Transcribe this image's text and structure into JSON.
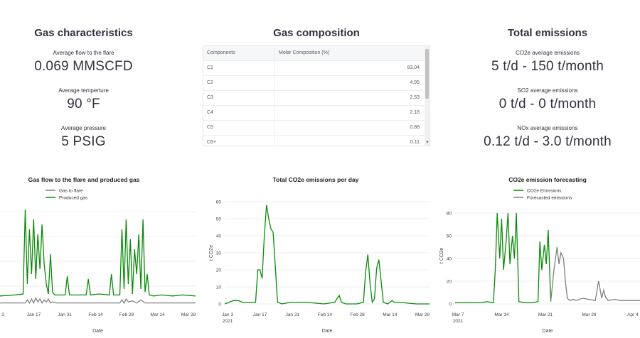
{
  "gas_characteristics": {
    "title": "Gas characteristics",
    "metrics": [
      {
        "label": "Average flow to the flare",
        "value": "0.069 MMSCFD"
      },
      {
        "label": "Average temperture",
        "value": "90 °F"
      },
      {
        "label": "Average pressure",
        "value": "5 PSIG"
      }
    ]
  },
  "gas_composition": {
    "title": "Gas composition",
    "headers": [
      "Components",
      "Molar Composition (%)"
    ],
    "rows": [
      {
        "component": "C1",
        "value": "83.04"
      },
      {
        "component": "C2",
        "value": "4.95"
      },
      {
        "component": "C3",
        "value": "2.53"
      },
      {
        "component": "C4",
        "value": "2.18"
      },
      {
        "component": "C5",
        "value": "0.88"
      },
      {
        "component": "C6+",
        "value": "0.11"
      }
    ]
  },
  "total_emissions": {
    "title": "Total emissions",
    "metrics": [
      {
        "label": "CO2e average emissions",
        "value": "5 t/d - 150 t/month"
      },
      {
        "label": "SO2 average emissions",
        "value": "0 t/d - 0 t/month"
      },
      {
        "label": "NOx average emissions",
        "value": "0.12 t/d - 3.0 t/month"
      }
    ]
  },
  "colors": {
    "green": "#0b8a0b",
    "gray": "#808080",
    "grid": "#ececec"
  },
  "chart_data": [
    {
      "type": "line",
      "title": "Gas flow to the flare and produced gas",
      "xlabel": "Date",
      "ylabel": "",
      "x_ticks": [
        "3",
        "Jan 17",
        "Jan 31",
        "Feb 14",
        "Feb 28",
        "Mar 14",
        "Mar 28"
      ],
      "x_range": [
        3,
        96
      ],
      "y_range": [
        0,
        1
      ],
      "legend_placement": "top-left",
      "series": [
        {
          "name": "Gas to flare",
          "color": "#808080",
          "x": [
            3,
            15,
            16,
            17,
            18,
            19,
            20,
            21,
            22,
            23,
            24,
            25,
            26,
            27,
            28,
            30,
            40,
            50,
            60,
            61,
            62,
            63,
            64,
            66,
            68,
            70,
            72,
            80,
            90,
            96
          ],
          "y": [
            0.01,
            0.01,
            0.04,
            0.01,
            0.05,
            0.01,
            0.06,
            0.02,
            0.05,
            0.01,
            0.04,
            0.02,
            0.05,
            0.01,
            0.02,
            0.01,
            0.01,
            0.01,
            0.01,
            0.04,
            0.01,
            0.05,
            0.02,
            0.03,
            0.01,
            0.04,
            0.01,
            0.01,
            0.01,
            0.01
          ]
        },
        {
          "name": "Produced gas",
          "color": "#0b8a0b",
          "x": [
            3,
            10,
            14,
            15,
            16,
            17,
            18,
            19,
            20,
            21,
            22,
            23,
            24,
            25,
            26,
            27,
            28,
            29,
            30,
            34,
            35,
            36,
            40,
            44,
            45,
            46,
            50,
            55,
            56,
            57,
            60,
            61,
            62,
            63,
            64,
            65,
            66,
            67,
            68,
            69,
            70,
            71,
            72,
            73,
            74,
            76,
            80,
            85,
            90,
            96
          ],
          "y": [
            0.08,
            0.09,
            0.1,
            0.95,
            0.2,
            0.75,
            0.3,
            0.85,
            0.25,
            0.7,
            0.35,
            0.8,
            0.4,
            0.2,
            0.1,
            0.5,
            0.12,
            0.09,
            0.09,
            0.09,
            0.28,
            0.09,
            0.09,
            0.09,
            0.25,
            0.09,
            0.1,
            0.09,
            0.3,
            0.09,
            0.09,
            0.75,
            0.15,
            0.85,
            0.2,
            0.65,
            0.1,
            0.55,
            0.3,
            0.7,
            0.15,
            0.85,
            0.12,
            0.3,
            0.09,
            0.08,
            0.09,
            0.08,
            0.09,
            0.08
          ]
        }
      ]
    },
    {
      "type": "line",
      "title": "Total CO2e emissions per day",
      "xlabel": "Date",
      "ylabel": "t CO2e",
      "x_ticks": [
        "Jan 3\n2021",
        "Jan 17",
        "Jan 31",
        "Feb 14",
        "Feb 28",
        "Mar 14",
        "Mar 28"
      ],
      "x_range": [
        3,
        96
      ],
      "y_ticks": [
        0,
        10,
        20,
        30,
        40,
        50,
        60
      ],
      "y_range": [
        0,
        60
      ],
      "series": [
        {
          "name": "",
          "color": "#0b8a0b",
          "x": [
            3,
            5,
            7,
            9,
            11,
            13,
            15,
            17,
            18,
            19,
            20,
            21,
            22,
            23,
            24,
            25,
            27,
            29,
            33,
            40,
            48,
            53,
            55,
            56,
            58,
            63,
            66,
            67,
            68,
            69,
            70,
            71,
            72,
            73,
            75,
            77,
            78,
            79,
            80,
            82,
            90,
            96
          ],
          "y": [
            0,
            1,
            2,
            2,
            1,
            1,
            1,
            1,
            20,
            20,
            15,
            40,
            58,
            50,
            44,
            42,
            1,
            0,
            1,
            1,
            0,
            1,
            5,
            1,
            0,
            0,
            1,
            19,
            29,
            12,
            1,
            3,
            21,
            26,
            1,
            0,
            1,
            2,
            1,
            1,
            0,
            0
          ]
        }
      ]
    },
    {
      "type": "line",
      "title": "CO2e emission forecasting",
      "xlabel": "Date",
      "ylabel": "t CO2e",
      "x_ticks": [
        "Mar 7\n2021",
        "Mar 14",
        "Mar 21",
        "Mar 28",
        "Apr 4"
      ],
      "x_range": [
        64,
        93
      ],
      "y_ticks": [
        0,
        20,
        40,
        60,
        80
      ],
      "y_range": [
        0,
        85
      ],
      "legend_placement": "top-left",
      "series": [
        {
          "name": "CO2e Emissions",
          "color": "#0b8a0b",
          "x": [
            64,
            68,
            69,
            70,
            70.3,
            70.6,
            71,
            71.3,
            71.6,
            72,
            72.3,
            72.6,
            73,
            73.3,
            73.6,
            74,
            75,
            76,
            77,
            77.3,
            77.6,
            78,
            78.3,
            78.6,
            79
          ],
          "y": [
            1,
            1,
            2,
            1,
            30,
            80,
            40,
            75,
            30,
            55,
            80,
            35,
            60,
            40,
            80,
            2,
            1,
            1,
            2,
            55,
            30,
            52,
            35,
            65,
            2
          ]
        },
        {
          "name": "Forecasted emissions",
          "color": "#808080",
          "x": [
            79,
            79.5,
            80,
            80.3,
            80.6,
            81,
            81.3,
            81.6,
            82,
            82.5,
            83,
            84,
            85,
            86,
            86.5,
            87,
            87.3,
            87.6,
            88,
            89,
            90,
            91,
            92,
            93
          ],
          "y": [
            2,
            30,
            50,
            35,
            45,
            40,
            20,
            5,
            3,
            4,
            3,
            5,
            4,
            3,
            20,
            5,
            12,
            6,
            3,
            4,
            3,
            3,
            3,
            3
          ]
        }
      ]
    }
  ]
}
